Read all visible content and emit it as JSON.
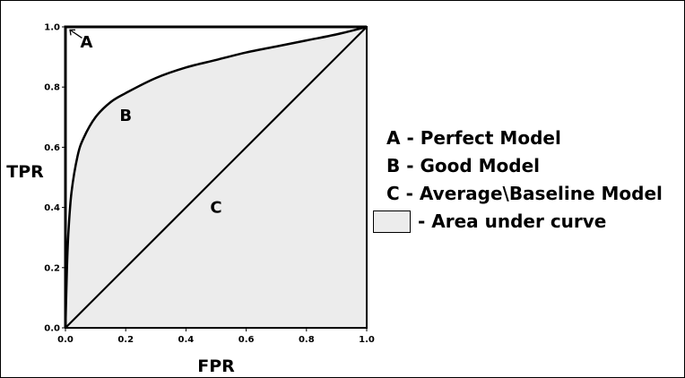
{
  "chart_data": {
    "type": "line",
    "xlabel": "FPR",
    "ylabel": "TPR",
    "xlim": [
      0,
      1
    ],
    "ylim": [
      0,
      1
    ],
    "x_ticks": [
      "0.0",
      "0.2",
      "0.4",
      "0.6",
      "0.8",
      "1.0"
    ],
    "y_ticks": [
      "0.0",
      "0.2",
      "0.4",
      "0.6",
      "0.8",
      "1.0"
    ],
    "grid": false,
    "series": [
      {
        "name": "A",
        "x": [
          0,
          0,
          1
        ],
        "y": [
          0,
          1,
          1
        ]
      },
      {
        "name": "B",
        "x": [
          0,
          0.005,
          0.01,
          0.02,
          0.04,
          0.06,
          0.1,
          0.15,
          0.2,
          0.3,
          0.4,
          0.5,
          0.6,
          0.7,
          0.8,
          0.9,
          1.0
        ],
        "y": [
          0,
          0.2,
          0.32,
          0.45,
          0.57,
          0.63,
          0.7,
          0.75,
          0.78,
          0.83,
          0.865,
          0.89,
          0.915,
          0.935,
          0.955,
          0.975,
          1.0
        ]
      },
      {
        "name": "C",
        "x": [
          0,
          1
        ],
        "y": [
          0,
          1
        ]
      }
    ],
    "shaded_area": "area under curve B",
    "shade_color": "#ececec",
    "annotations": [
      {
        "text": "A",
        "x": 0.07,
        "y": 0.95
      },
      {
        "text": "B",
        "x": 0.2,
        "y": 0.705
      },
      {
        "text": "C",
        "x": 0.5,
        "y": 0.4
      }
    ],
    "legend_position": "right",
    "legend": [
      {
        "key": "A",
        "text": "A - Perfect Model"
      },
      {
        "key": "B",
        "text": "B - Good Model"
      },
      {
        "key": "C",
        "text": "C - Average\\Baseline Model"
      },
      {
        "key": "area",
        "text": "- Area under curve"
      }
    ]
  }
}
